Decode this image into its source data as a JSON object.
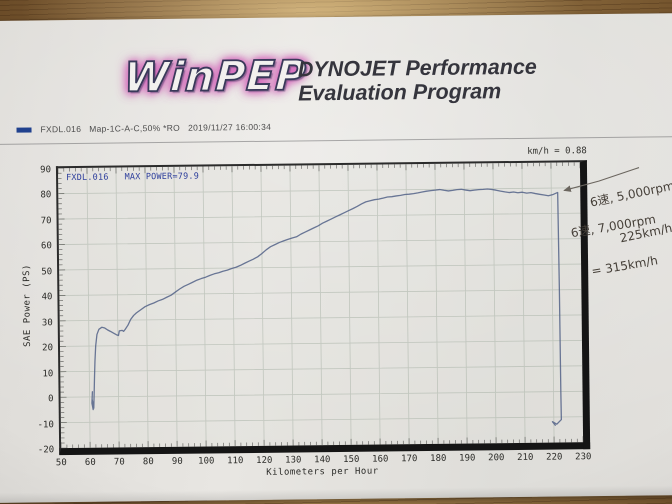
{
  "header": {
    "logo_text": "WinPEP",
    "title_line1": "DYNOJET Performance",
    "title_line2": "Evaluation Program"
  },
  "legend": {
    "swatch_color": "#20418e",
    "label": "FXDL.016   Map-1C-A-C,50% *RO   2019/11/27 16:00:34"
  },
  "readout": {
    "speed_ratio": "km/h = 0.88"
  },
  "handwritten": {
    "note1_line1": "6速, 5,000rpm",
    "note1_line2": "225km/h",
    "note2_line1": "6速, 7,000rpm",
    "note2_line2": "= 315km/h"
  },
  "chart_data": {
    "type": "line",
    "title": "FXDL.016   MAX POWER=79.9",
    "xlabel": "Kilometers per Hour",
    "ylabel": "SAE Power (PS)",
    "xlim": [
      50,
      230
    ],
    "ylim": [
      -20,
      90
    ],
    "xticks": [
      50,
      60,
      70,
      80,
      90,
      100,
      110,
      120,
      130,
      140,
      150,
      160,
      170,
      180,
      190,
      200,
      210,
      220,
      230
    ],
    "yticks": [
      -20,
      -10,
      0,
      10,
      20,
      30,
      40,
      50,
      60,
      70,
      80,
      90
    ],
    "grid": true,
    "grid_color": "#a9b2a6",
    "line_color": "#56658a",
    "max_power_ps": 79.9,
    "series": [
      {
        "name": "FXDL.016",
        "points": [
          [
            61,
            2
          ],
          [
            60.8,
            -2.5
          ],
          [
            61.2,
            -5
          ],
          [
            60.9,
            -1
          ],
          [
            61.4,
            -4.5
          ],
          [
            61.6,
            1
          ],
          [
            61.8,
            8
          ],
          [
            62,
            14
          ],
          [
            62.3,
            20
          ],
          [
            62.8,
            24.5
          ],
          [
            63.5,
            26.5
          ],
          [
            64.5,
            27.3
          ],
          [
            65.5,
            27
          ],
          [
            66.5,
            26.2
          ],
          [
            67.5,
            25.6
          ],
          [
            68.5,
            25
          ],
          [
            69.5,
            24.3
          ],
          [
            70.2,
            24
          ],
          [
            70.5,
            25.8
          ],
          [
            71.5,
            26
          ],
          [
            72,
            25.6
          ],
          [
            72.5,
            26.3
          ],
          [
            73.5,
            28
          ],
          [
            74.5,
            30.3
          ],
          [
            75.5,
            31.8
          ],
          [
            76.5,
            32.8
          ],
          [
            78,
            34
          ],
          [
            79.5,
            35.2
          ],
          [
            81,
            36
          ],
          [
            82.5,
            36.6
          ],
          [
            84,
            37.4
          ],
          [
            85.5,
            38
          ],
          [
            87,
            38.8
          ],
          [
            88.5,
            39.6
          ],
          [
            90,
            40.8
          ],
          [
            91.5,
            42
          ],
          [
            93,
            43
          ],
          [
            94.5,
            43.8
          ],
          [
            96,
            44.6
          ],
          [
            97.5,
            45.4
          ],
          [
            99,
            46
          ],
          [
            100.5,
            46.5
          ],
          [
            102,
            47.2
          ],
          [
            103.5,
            47.8
          ],
          [
            105,
            48.2
          ],
          [
            106.5,
            48.8
          ],
          [
            108,
            49.2
          ],
          [
            109.5,
            49.8
          ],
          [
            111,
            50.3
          ],
          [
            112.5,
            51
          ],
          [
            114,
            51.8
          ],
          [
            115.5,
            52.6
          ],
          [
            117,
            53.4
          ],
          [
            118.5,
            54.3
          ],
          [
            120,
            55.6
          ],
          [
            121.5,
            57
          ],
          [
            123,
            58.2
          ],
          [
            124.5,
            59
          ],
          [
            126,
            59.8
          ],
          [
            127.5,
            60.4
          ],
          [
            129,
            61
          ],
          [
            130.5,
            61.5
          ],
          [
            132,
            62
          ],
          [
            133.5,
            63
          ],
          [
            135,
            63.8
          ],
          [
            136.5,
            64.6
          ],
          [
            138,
            65.4
          ],
          [
            139.5,
            66.2
          ],
          [
            141,
            67.2
          ],
          [
            142.5,
            68
          ],
          [
            144,
            68.8
          ],
          [
            145.5,
            69.6
          ],
          [
            147,
            70.4
          ],
          [
            148.5,
            71.2
          ],
          [
            150,
            72
          ],
          [
            151.5,
            72.8
          ],
          [
            153,
            73.6
          ],
          [
            154.5,
            74.6
          ],
          [
            156,
            75.4
          ],
          [
            157.5,
            75.8
          ],
          [
            159,
            76.2
          ],
          [
            160.5,
            76.4
          ],
          [
            162,
            76.8
          ],
          [
            163.5,
            77.2
          ],
          [
            165,
            77.3
          ],
          [
            166.5,
            77.6
          ],
          [
            168,
            77.8
          ],
          [
            169.5,
            78.1
          ],
          [
            171,
            78.2
          ],
          [
            172.5,
            78.4
          ],
          [
            174,
            78.7
          ],
          [
            175.5,
            79
          ],
          [
            177,
            79.3
          ],
          [
            178.5,
            79.5
          ],
          [
            180,
            79.7
          ],
          [
            181.5,
            79.9
          ],
          [
            183,
            79.6
          ],
          [
            184.5,
            79.3
          ],
          [
            186,
            79.5
          ],
          [
            187.5,
            79.8
          ],
          [
            189,
            79.9
          ],
          [
            190.5,
            79.6
          ],
          [
            192,
            79.3
          ],
          [
            193.5,
            79.5
          ],
          [
            195,
            79.7
          ],
          [
            196.5,
            79.8
          ],
          [
            198,
            79.9
          ],
          [
            199.5,
            79.7
          ],
          [
            201,
            79.4
          ],
          [
            202.5,
            79
          ],
          [
            204,
            78.7
          ],
          [
            205.5,
            78.4
          ],
          [
            207,
            78.6
          ],
          [
            208.5,
            78.3
          ],
          [
            210,
            78.5
          ],
          [
            211.5,
            78.1
          ],
          [
            213,
            78.3
          ],
          [
            214.5,
            77.9
          ],
          [
            216,
            77.6
          ],
          [
            217.5,
            77.3
          ],
          [
            219,
            77
          ],
          [
            220.5,
            77.4
          ],
          [
            221.5,
            77.9
          ],
          [
            222.2,
            78.2
          ],
          [
            222.4,
            40
          ],
          [
            222.5,
            0
          ],
          [
            222.6,
            -11
          ],
          [
            221,
            -12.8
          ],
          [
            219.5,
            -11.8
          ],
          [
            220.5,
            -13.2
          ]
        ]
      }
    ]
  }
}
